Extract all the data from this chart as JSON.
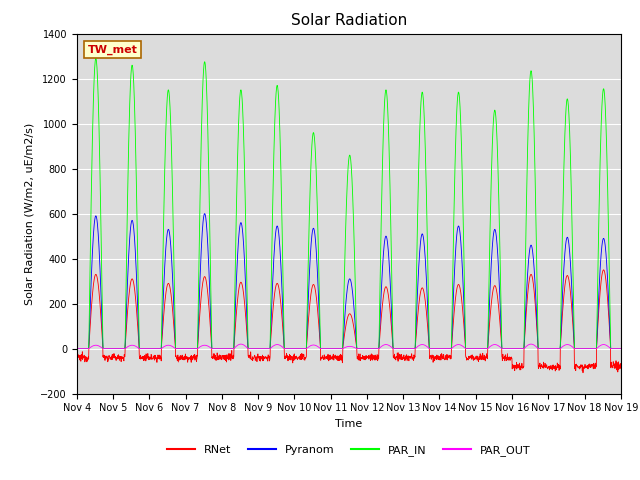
{
  "title": "Solar Radiation",
  "ylabel": "Solar Radiation (W/m2, uE/m2/s)",
  "xlabel": "Time",
  "ylim": [
    -200,
    1400
  ],
  "yticks": [
    -200,
    0,
    200,
    400,
    600,
    800,
    1000,
    1200,
    1400
  ],
  "station_label": "TW_met",
  "n_days": 15,
  "x_tick_labels": [
    "Nov 4",
    "Nov 5",
    "Nov 6",
    "Nov 7",
    "Nov 8",
    "Nov 9",
    "Nov 10",
    "Nov 11",
    "Nov 12",
    "Nov 13",
    "Nov 14",
    "Nov 15",
    "Nov 16",
    "Nov 17",
    "Nov 18",
    "Nov 19"
  ],
  "colors": {
    "RNet": "#ff0000",
    "Pyranom": "#0000ff",
    "PAR_IN": "#00ff00",
    "PAR_OUT": "#ff00ff"
  },
  "bg_color": "#dcdcdc",
  "title_fontsize": 11,
  "label_fontsize": 8,
  "tick_fontsize": 7,
  "par_in_peaks": [
    1290,
    1260,
    1150,
    1275,
    1150,
    1170,
    960,
    860,
    1150,
    1140,
    1140,
    1060,
    1235,
    1110,
    1155
  ],
  "pyranom_peaks": [
    590,
    570,
    530,
    600,
    560,
    545,
    535,
    310,
    500,
    510,
    545,
    530,
    460,
    495,
    490
  ],
  "rnet_peaks": [
    330,
    310,
    290,
    320,
    295,
    290,
    285,
    155,
    275,
    270,
    285,
    280,
    330,
    325,
    350
  ],
  "par_out_peaks": [
    15,
    15,
    15,
    15,
    20,
    18,
    16,
    10,
    18,
    18,
    18,
    18,
    20,
    18,
    18
  ],
  "day_start": 0.33,
  "day_end": 0.72,
  "night_rnet_mean": -40,
  "night_rnet_late": -80
}
